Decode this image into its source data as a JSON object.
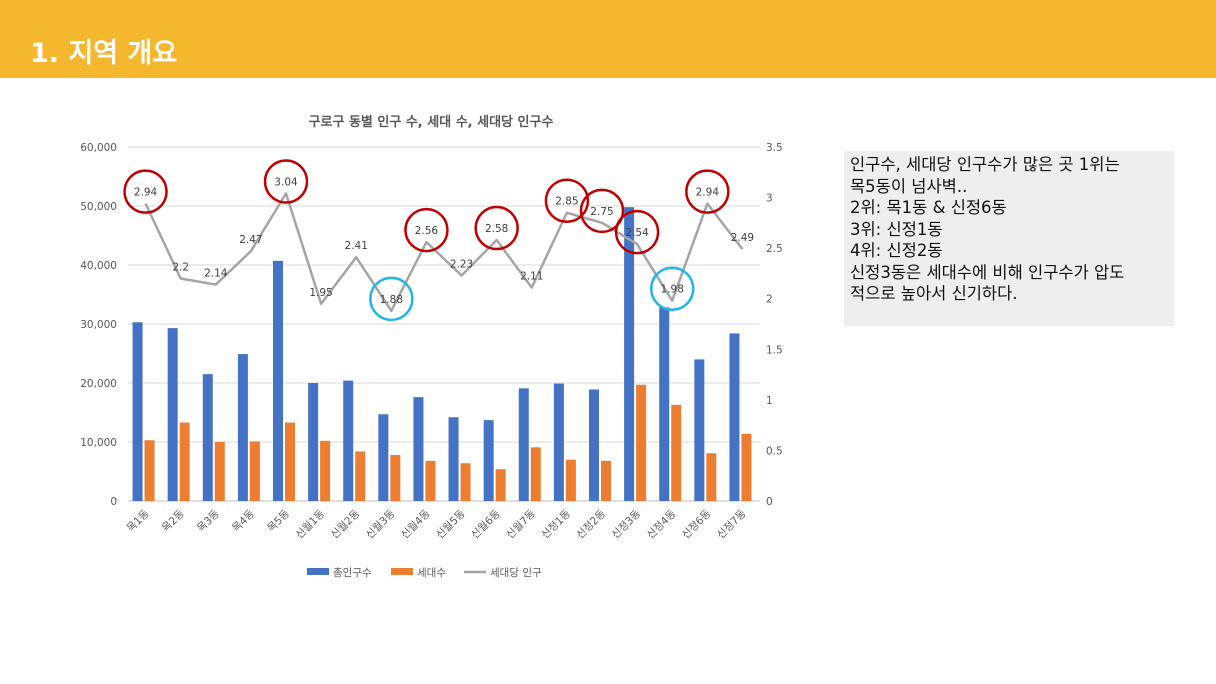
{
  "header": {
    "title": "1. 지역 개요",
    "color": "#F4B72E"
  },
  "chart_data": {
    "type": "bar",
    "title": "구로구 동별 인구 수, 세대 수, 세대당 인구수",
    "categories": [
      "목1동",
      "목2동",
      "목3동",
      "목4동",
      "목5동",
      "신월1동",
      "신월2동",
      "신월3동",
      "신월4동",
      "신월5동",
      "신월6동",
      "신월7동",
      "신정1동",
      "신정2동",
      "신정3동",
      "신정4동",
      "신정6동",
      "신정7동"
    ],
    "y_ticks": [
      "0",
      "10,000",
      "20,000",
      "30,000",
      "40,000",
      "50,000",
      "60,000"
    ],
    "y2_ticks": [
      "0",
      "0.5",
      "1",
      "1.5",
      "2",
      "2.5",
      "3",
      "3.5"
    ],
    "ylim": [
      0,
      60000
    ],
    "y2lim": [
      0,
      3.5
    ],
    "series": [
      {
        "name": "총인구수",
        "type": "bar",
        "color": "#4472C4",
        "values": [
          30300,
          29300,
          21500,
          24900,
          40700,
          20000,
          20400,
          14700,
          17600,
          14200,
          13700,
          19100,
          19900,
          18900,
          49800,
          32800,
          24000,
          28400
        ]
      },
      {
        "name": "세대수",
        "type": "bar",
        "color": "#ED7D31",
        "values": [
          10300,
          13300,
          10000,
          10100,
          13300,
          10200,
          8400,
          7800,
          6800,
          6400,
          5400,
          9100,
          7000,
          6800,
          19700,
          16300,
          8100,
          11400
        ]
      },
      {
        "name": "세대당 인구",
        "type": "line",
        "axis": "secondary",
        "color": "#A5A5A5",
        "values": [
          2.94,
          2.2,
          2.14,
          2.47,
          3.04,
          1.95,
          2.41,
          1.88,
          2.56,
          2.23,
          2.58,
          2.11,
          2.85,
          2.75,
          2.54,
          1.98,
          2.94,
          2.49
        ],
        "labels": [
          "2.94",
          "2.2",
          "2.14",
          "2.47",
          "3.04",
          "1.95",
          "2.41",
          "1.88",
          "2.56",
          "2.23",
          "2.58",
          "2.11",
          "2.85",
          "2.75",
          "2.54",
          "1.98",
          "2.94",
          "2.49"
        ]
      }
    ],
    "highlights": {
      "red": [
        0,
        4,
        8,
        10,
        12,
        13,
        14,
        16
      ],
      "blue": [
        7,
        15
      ],
      "red_color": "#C00000",
      "blue_color": "#1FB5EA"
    },
    "legend_position": "bottom",
    "grid": true
  },
  "note": {
    "lines": [
      "인구수, 세대당 인구수가 많은 곳 1위는",
      "목5동이 넘사벽..",
      "2위: 목1동 & 신정6동",
      "3위: 신정1동",
      "4위: 신정2동",
      "신정3동은 세대수에 비해 인구수가 압도",
      "적으로 높아서 신기하다."
    ]
  }
}
